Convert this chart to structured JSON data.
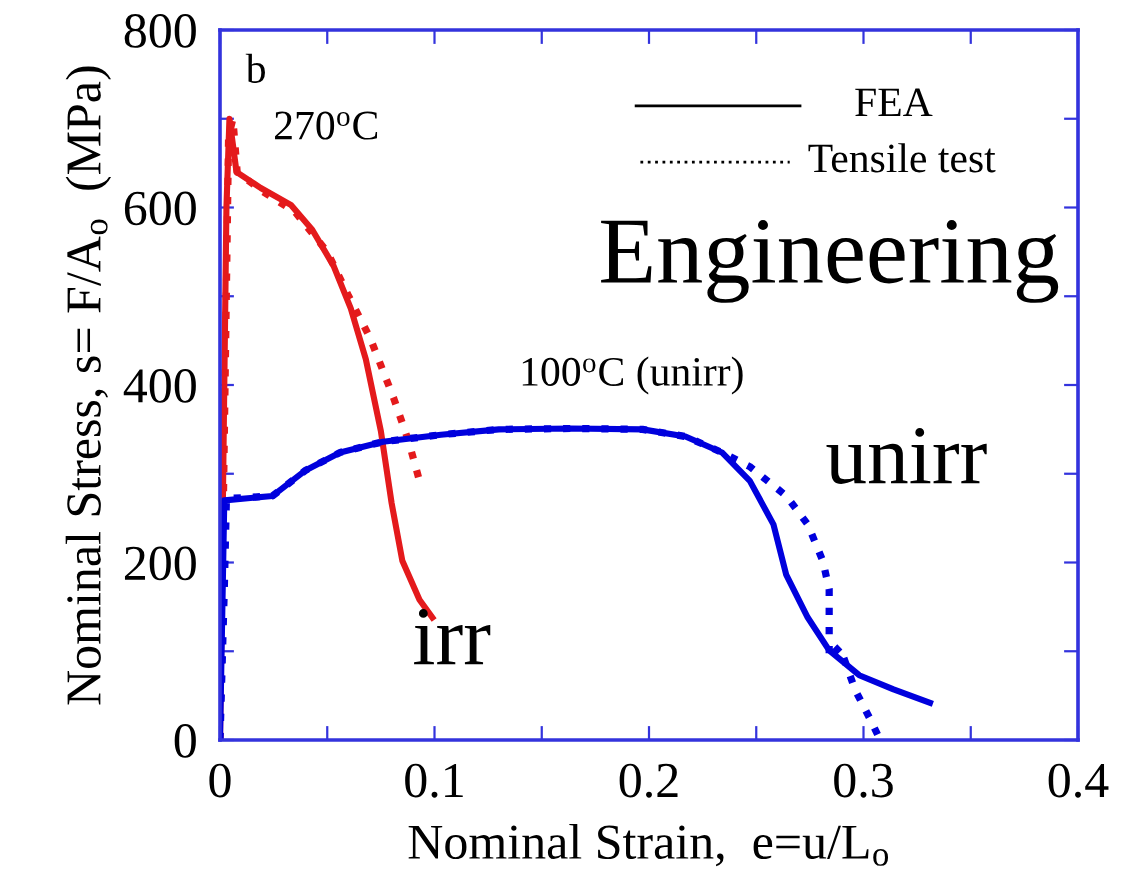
{
  "chart_data": {
    "type": "line",
    "xlabel": "Nominal Strain,  e=u/L$_{o}$",
    "ylabel": "Nominal Stress, s= F/A$_{o}$  (MPa)",
    "xlim": [
      0,
      0.4
    ],
    "ylim": [
      0,
      800
    ],
    "xticks": [
      0,
      {
        "value": 0.05,
        "label": null
      },
      0.1,
      {
        "value": 0.15,
        "label": null
      },
      0.2,
      {
        "value": 0.25,
        "label": null
      },
      0.3,
      {
        "value": 0.35,
        "label": null
      },
      0.4
    ],
    "yticks": [
      0,
      {
        "value": 100,
        "label": null
      },
      200,
      {
        "value": 300,
        "label": null
      },
      400,
      {
        "value": 500,
        "label": null
      },
      600,
      {
        "value": 700,
        "label": null
      },
      800
    ],
    "grid": false,
    "marker": "none",
    "annotations": [
      "b",
      "270$^{o}$C",
      "100$^{o}$C (unirr)",
      "Engineering",
      "unirr",
      "irr",
      "FEA",
      "Tensile test"
    ],
    "series": [
      {
        "color": "#e41a1c",
        "line_style": "solid",
        "x": [
          0,
          0.003,
          0.0044,
          0.0077,
          0.019,
          0.033,
          0.043,
          0.053,
          0.061,
          0.068,
          0.075,
          0.08,
          0.085,
          0.093,
          0.099
        ],
        "values": [
          0,
          600,
          700,
          640,
          622,
          603,
          575,
          534,
          486,
          429,
          348,
          267,
          202,
          158,
          138
        ]
      },
      {
        "color": "#e41a1c",
        "line_style": "dotted",
        "x": [
          0,
          0.004,
          0.006,
          0.008,
          0.02,
          0.035,
          0.05,
          0.06,
          0.07,
          0.081,
          0.088,
          0.093
        ],
        "values": [
          0,
          680,
          700,
          640,
          618,
          595,
          550,
          500,
          453,
          385,
          336,
          292
        ]
      },
      {
        "color": "#0000dd",
        "line_style": "solid",
        "x": [
          0,
          0.002,
          0.0245,
          0.04,
          0.056,
          0.076,
          0.103,
          0.13,
          0.164,
          0.197,
          0.217,
          0.234,
          0.247,
          0.258,
          0.264,
          0.274,
          0.284,
          0.298,
          0.314,
          0.331
        ],
        "values": [
          0,
          270,
          275,
          304,
          324,
          336,
          344,
          350,
          351,
          350,
          342,
          324,
          292,
          243,
          186,
          138,
          101,
          73,
          57,
          42
        ]
      },
      {
        "color": "#0000dd",
        "line_style": "dotted",
        "x": [
          0,
          0.002,
          0.003,
          0.0245,
          0.04,
          0.056,
          0.076,
          0.103,
          0.13,
          0.164,
          0.197,
          0.217,
          0.234,
          0.247,
          0.264,
          0.274,
          0.281,
          0.284,
          0.284,
          0.289,
          0.296,
          0.303,
          0.307
        ],
        "values": [
          0,
          170,
          272,
          275,
          304,
          324,
          336,
          344,
          350,
          351,
          350,
          342,
          324,
          308,
          275,
          243,
          202,
          170,
          93,
          105,
          57,
          24,
          4
        ]
      }
    ]
  }
}
